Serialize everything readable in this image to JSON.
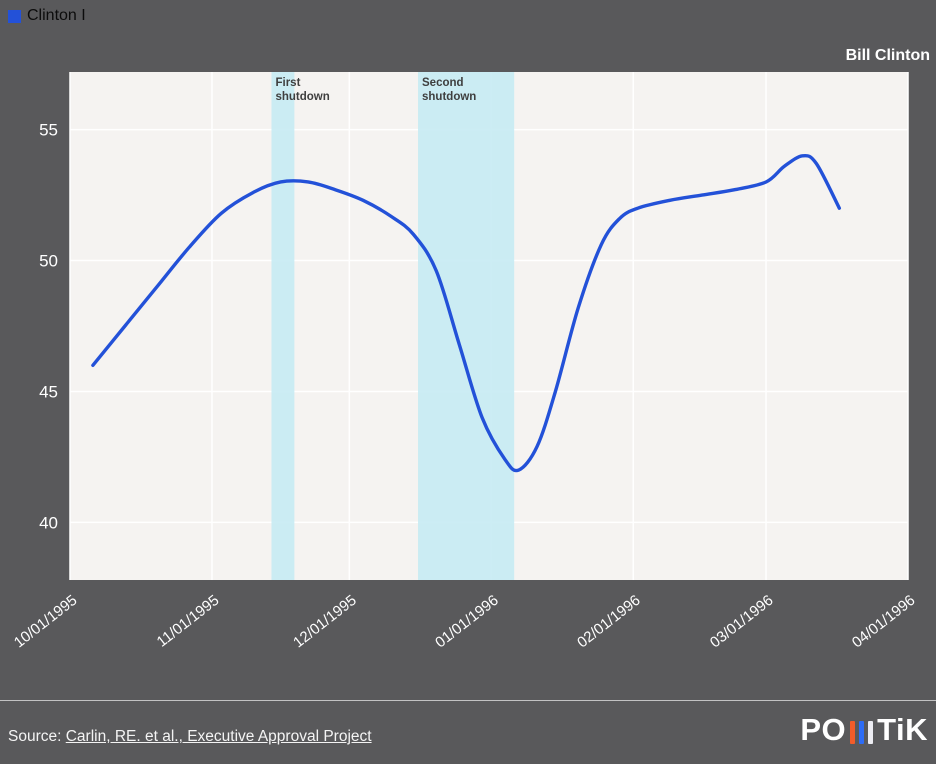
{
  "legend": {
    "label": "Clinton I"
  },
  "header": {
    "title": "Bill Clinton"
  },
  "footer": {
    "source_prefix": "Source: ",
    "source_link": "Carlin, RE. et al., Executive Approval Project",
    "logo_left": "PO",
    "logo_right": "TiK"
  },
  "colors": {
    "background": "#59595b",
    "plot_background": "#f5f3f1",
    "gridline": "#ffffff",
    "line": "#2351d8",
    "band": "#c7ebf3",
    "axis_text": "#ffffff",
    "band_label_text": "#3f3f3f",
    "legend_text": "#0c0c0c"
  },
  "chart_data": {
    "type": "line",
    "title": "Bill Clinton",
    "x_unit": "days since 10/01/1995",
    "xlim": [
      0,
      183
    ],
    "ylim": [
      37.8,
      57.2
    ],
    "yticks": [
      40,
      45,
      50,
      55
    ],
    "xticks": [
      {
        "day": 0,
        "label": "10/01/1995"
      },
      {
        "day": 31,
        "label": "11/01/1995"
      },
      {
        "day": 61,
        "label": "12/01/1995"
      },
      {
        "day": 92,
        "label": "01/01/1996"
      },
      {
        "day": 123,
        "label": "02/01/1996"
      },
      {
        "day": 152,
        "label": "03/01/1996"
      },
      {
        "day": 183,
        "label": "04/01/1996"
      }
    ],
    "grid": true,
    "legend_position": "top-left",
    "bands": [
      {
        "from_day": 44,
        "to_day": 49,
        "label_lines": [
          "First",
          "shutdown"
        ]
      },
      {
        "from_day": 76,
        "to_day": 97,
        "label_lines": [
          "Second",
          "shutdown"
        ]
      }
    ],
    "series": [
      {
        "name": "Clinton I",
        "color": "#2351d8",
        "points": [
          [
            5,
            46.0
          ],
          [
            12,
            47.5
          ],
          [
            19,
            49.0
          ],
          [
            26,
            50.5
          ],
          [
            33,
            51.8
          ],
          [
            40,
            52.6
          ],
          [
            46,
            53.0
          ],
          [
            52,
            53.0
          ],
          [
            58,
            52.7
          ],
          [
            64,
            52.3
          ],
          [
            70,
            51.7
          ],
          [
            75,
            51.0
          ],
          [
            80,
            49.6
          ],
          [
            85,
            46.8
          ],
          [
            90,
            44.0
          ],
          [
            95,
            42.4
          ],
          [
            98,
            42.0
          ],
          [
            102,
            42.9
          ],
          [
            106,
            45.0
          ],
          [
            111,
            48.2
          ],
          [
            116,
            50.6
          ],
          [
            120,
            51.6
          ],
          [
            124,
            52.0
          ],
          [
            131,
            52.3
          ],
          [
            138,
            52.5
          ],
          [
            145,
            52.7
          ],
          [
            152,
            53.0
          ],
          [
            156,
            53.6
          ],
          [
            160,
            54.0
          ],
          [
            163,
            53.7
          ],
          [
            168,
            52.0
          ]
        ]
      }
    ]
  }
}
